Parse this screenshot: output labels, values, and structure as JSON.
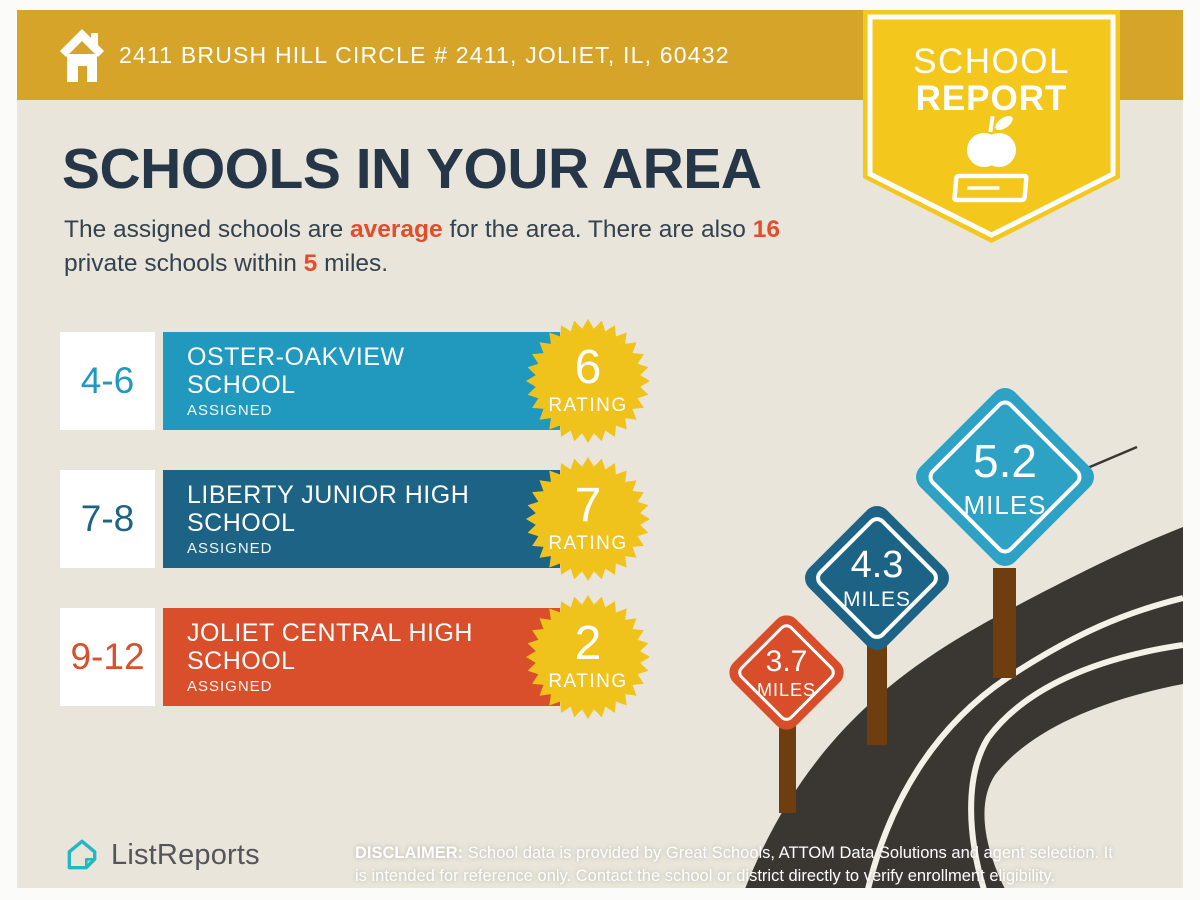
{
  "header": {
    "address": "2411 BRUSH HILL CIRCLE # 2411, JOLIET, IL, 60432"
  },
  "badge": {
    "line1": "SCHOOL",
    "line2": "REPORT",
    "icon": "apple-on-book-icon"
  },
  "main": {
    "title": "SCHOOLS IN YOUR AREA",
    "subtitle": {
      "s1": "The assigned schools are ",
      "hl1": "average",
      "s2": " for the area. There are also ",
      "hl2": "16",
      "s3": "private schools within ",
      "hl3": "5",
      "s4": " miles."
    }
  },
  "schools": [
    {
      "grades": "4-6",
      "name": "OSTER-OAKVIEW SCHOOL",
      "tag": "ASSIGNED",
      "rating": "6",
      "rating_label": "RATING",
      "color": "#2199be"
    },
    {
      "grades": "7-8",
      "name": "LIBERTY JUNIOR HIGH SCHOOL",
      "tag": "ASSIGNED",
      "rating": "7",
      "rating_label": "RATING",
      "color": "#1d6385"
    },
    {
      "grades": "9-12",
      "name": "JOLIET CENTRAL HIGH SCHOOL",
      "tag": "ASSIGNED",
      "rating": "2",
      "rating_label": "RATING",
      "color": "#d94e2b"
    }
  ],
  "distance_signs": [
    {
      "value": "3.7",
      "unit": "MILES",
      "color": "#d94e2a"
    },
    {
      "value": "4.3",
      "unit": "MILES",
      "color": "#1d6385"
    },
    {
      "value": "5.2",
      "unit": "MILES",
      "color": "#2ea2c4"
    }
  ],
  "footer": {
    "brand": "ListReports",
    "disclaimer_label": "DISCLAIMER:",
    "disclaimer_line1": " School data is provided by Great Schools, ATTOM Data Solutions and agent selection. It",
    "disclaimer_line2": "is intended for reference only. Contact the school or district directly to verify enrollment eligibility."
  },
  "colors": {
    "header_gold": "#d7a42a",
    "badge_yellow": "#f3c71b",
    "background_beige": "#e9e5da",
    "title_navy": "#243647",
    "highlight_orange": "#e14e2a",
    "row_light_blue": "#2199be",
    "row_dark_blue": "#1d6385",
    "row_orange": "#d94e2b",
    "starburst_yellow": "#efc31c",
    "road_charcoal": "#3a3733",
    "post_brown": "#6f3e10",
    "brand_teal": "#25b6c3"
  }
}
